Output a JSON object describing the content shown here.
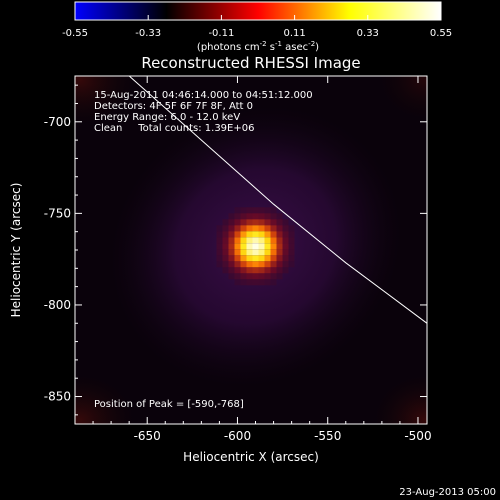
{
  "colorbar": {
    "tick_values": [
      -0.55,
      -0.33,
      -0.11,
      0.11,
      0.33,
      0.55
    ],
    "tick_labels": [
      "-0.55",
      "-0.33",
      "-0.11",
      "0.11",
      "0.33",
      "0.55"
    ],
    "unit_base": "(photons cm",
    "unit_exp1": "-2",
    "unit_mid": " s",
    "unit_exp2": "-1",
    "unit_mid2": " asec",
    "unit_exp3": "-2",
    "unit_end": ")",
    "stops": [
      "#0000ff",
      "#000000",
      "#ff0000",
      "#ffff00",
      "#ffffff"
    ]
  },
  "chart_data": {
    "type": "heatmap",
    "title": "Reconstructed RHESSI Image",
    "xlabel": "Heliocentric X (arcsec)",
    "ylabel": "Heliocentric Y (arcsec)",
    "xlim": [
      -690,
      -495
    ],
    "ylim": [
      -865,
      -675
    ],
    "x_ticks": [
      -650,
      -600,
      -550,
      -500
    ],
    "y_ticks": [
      -700,
      -750,
      -800,
      -850
    ],
    "x_tick_labels": [
      "-650",
      "-600",
      "-550",
      "-500"
    ],
    "y_tick_labels": [
      "-700",
      "-750",
      "-800",
      "-850"
    ],
    "annotation_lines": [
      "15-Aug-2011 04:46:14.000 to 04:51:12.000",
      "Detectors: 4F 5F 6F 7F 8F, Att 0",
      "Energy Range: 6.0 - 12.0 keV",
      "Clean     Total counts: 1.39E+06"
    ],
    "peak_label": "Position of Peak = [-590,-768]",
    "peak": {
      "x": -590,
      "y": -768
    },
    "limb_points": [
      [
        -660,
        -675
      ],
      [
        -620,
        -710
      ],
      [
        -580,
        -745
      ],
      [
        -540,
        -777
      ],
      [
        -495,
        -810
      ]
    ],
    "colormap": "blue-black-red-yellow-white"
  },
  "footer": {
    "timestamp": "23-Aug-2013 05:00"
  }
}
